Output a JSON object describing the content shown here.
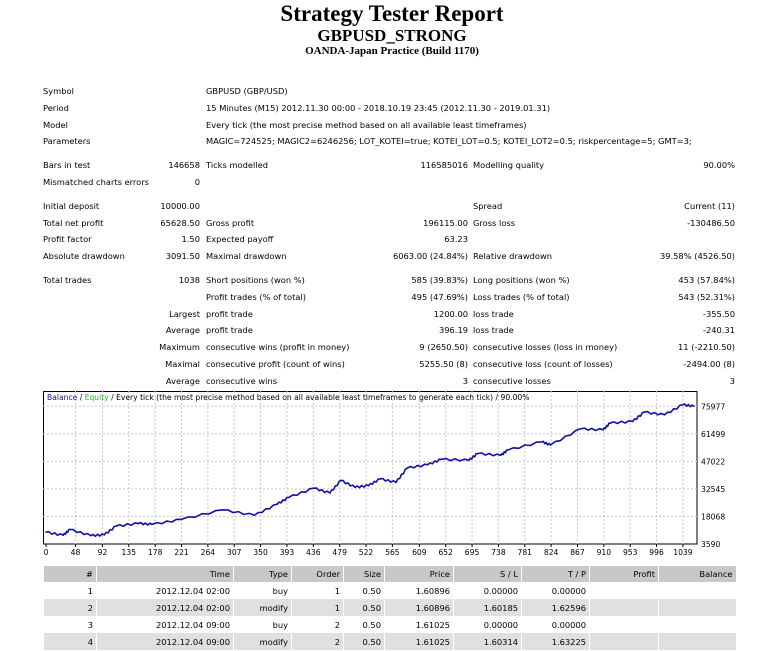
{
  "header": {
    "title": "Strategy Tester Report",
    "expert": "GBPUSD_STRONG",
    "server": "OANDA-Japan Practice (Build 1170)"
  },
  "stats": {
    "groups": [
      [
        [
          "Symbol",
          "",
          "GBPUSD (GBP/USD)",
          "",
          "",
          ""
        ],
        [
          "Period",
          "",
          "15 Minutes (M15) 2012.11.30 00:00 - 2018.10.19 23:45 (2012.11.30 - 2019.01.31)",
          "",
          "",
          ""
        ],
        [
          "Model",
          "",
          "Every tick (the most precise method based on all available least timeframes)",
          "",
          "",
          ""
        ],
        [
          "Parameters",
          "",
          "MAGIC=724525; MAGIC2=6246256; LOT_KOTEI=true; KOTEI_LOT=0.5; KOTEI_LOT2=0.5; riskpercentage=5; GMT=3;",
          "",
          "",
          ""
        ]
      ],
      [
        [
          "Bars in test",
          "146658",
          "Ticks modelled",
          "116585016",
          "Modelling quality",
          "90.00%"
        ],
        [
          "Mismatched charts errors",
          "0",
          "",
          "",
          "",
          ""
        ]
      ],
      [
        [
          "Initial deposit",
          "10000.00",
          "",
          "",
          "Spread",
          "Current (11)"
        ],
        [
          "Total net profit",
          "65628.50",
          "Gross profit",
          "196115.00",
          "Gross loss",
          "-130486.50"
        ],
        [
          "Profit factor",
          "1.50",
          "Expected payoff",
          "63.23",
          "",
          ""
        ],
        [
          "Absolute drawdown",
          "3091.50",
          "Maximal drawdown",
          "6063.00 (24.84%)",
          "Relative drawdown",
          "39.58% (4526.50)"
        ]
      ],
      [
        [
          "Total trades",
          "1038",
          "Short positions (won %)",
          "585 (39.83%)",
          "Long positions (won %)",
          "453 (57.84%)"
        ],
        [
          "",
          "",
          "Profit trades (% of total)",
          "495 (47.69%)",
          "Loss trades (% of total)",
          "543 (52.31%)"
        ],
        [
          "",
          "Largest",
          "profit trade",
          "1200.00",
          "loss trade",
          "-355.50"
        ],
        [
          "",
          "Average",
          "profit trade",
          "396.19",
          "loss trade",
          "-240.31"
        ],
        [
          "",
          "Maximum",
          "consecutive wins (profit in money)",
          "9 (2650.50)",
          "consecutive losses (loss in money)",
          "11 (-2210.50)"
        ],
        [
          "",
          "Maximal",
          "consecutive profit (count of wins)",
          "5255.50 (8)",
          "consecutive loss (count of losses)",
          "-2494.00 (8)"
        ],
        [
          "",
          "Average",
          "consecutive wins",
          "3",
          "consecutive losses",
          "3"
        ]
      ]
    ]
  },
  "chart_data": {
    "type": "line",
    "legend": {
      "balance": "Balance",
      "sep1": " / ",
      "equity": "Equity",
      "rest": " / Every tick (the most precise method based on all available least timeframes to generate each tick) / 90.00%"
    },
    "colors": {
      "balance": "#1010a8",
      "equity": "#22bb22",
      "grid": "#c8c8c8"
    },
    "xlabel": "",
    "ylabel": "",
    "x_ticks": [
      0,
      48,
      92,
      135,
      178,
      221,
      264,
      307,
      350,
      393,
      436,
      479,
      522,
      565,
      609,
      652,
      695,
      738,
      781,
      824,
      867,
      910,
      953,
      996,
      1039
    ],
    "y_ticks": [
      3590,
      18068,
      32545,
      47022,
      61499,
      75977
    ],
    "xlim": [
      -5,
      1062
    ],
    "ylim": [
      3590,
      84000
    ],
    "series": [
      {
        "name": "Balance",
        "x": [
          0,
          28,
          39,
          73,
          95,
          114,
          151,
          173,
          221,
          288,
          340,
          377,
          396,
          437,
          463,
          481,
          504,
          526,
          545,
          571,
          589,
          623,
          645,
          690,
          704,
          742,
          753,
          809,
          823,
          872,
          909,
          920,
          957,
          976,
          1009,
          1039,
          1057
        ],
        "y": [
          9800,
          8200,
          11200,
          8000,
          8400,
          13000,
          14400,
          13900,
          16500,
          21500,
          18700,
          24500,
          28100,
          32900,
          30400,
          37000,
          33400,
          34300,
          37800,
          36000,
          43500,
          45300,
          48100,
          47600,
          51100,
          50200,
          52900,
          57300,
          55600,
          64100,
          63600,
          67100,
          68000,
          72900,
          71500,
          76800,
          75977
        ]
      }
    ]
  },
  "trades": {
    "columns": [
      "#",
      "Time",
      "Type",
      "Order",
      "Size",
      "Price",
      "S / L",
      "T / P",
      "Profit",
      "Balance"
    ],
    "rows": [
      [
        "1",
        "2012.12.04 02:00",
        "buy",
        "1",
        "0.50",
        "1.60896",
        "0.00000",
        "0.00000",
        "",
        ""
      ],
      [
        "2",
        "2012.12.04 02:00",
        "modify",
        "1",
        "0.50",
        "1.60896",
        "1.60185",
        "1.62596",
        "",
        ""
      ],
      [
        "3",
        "2012.12.04 09:00",
        "buy",
        "2",
        "0.50",
        "1.61025",
        "0.00000",
        "0.00000",
        "",
        ""
      ],
      [
        "4",
        "2012.12.04 09:00",
        "modify",
        "2",
        "0.50",
        "1.61025",
        "1.60314",
        "1.63225",
        "",
        ""
      ]
    ]
  }
}
